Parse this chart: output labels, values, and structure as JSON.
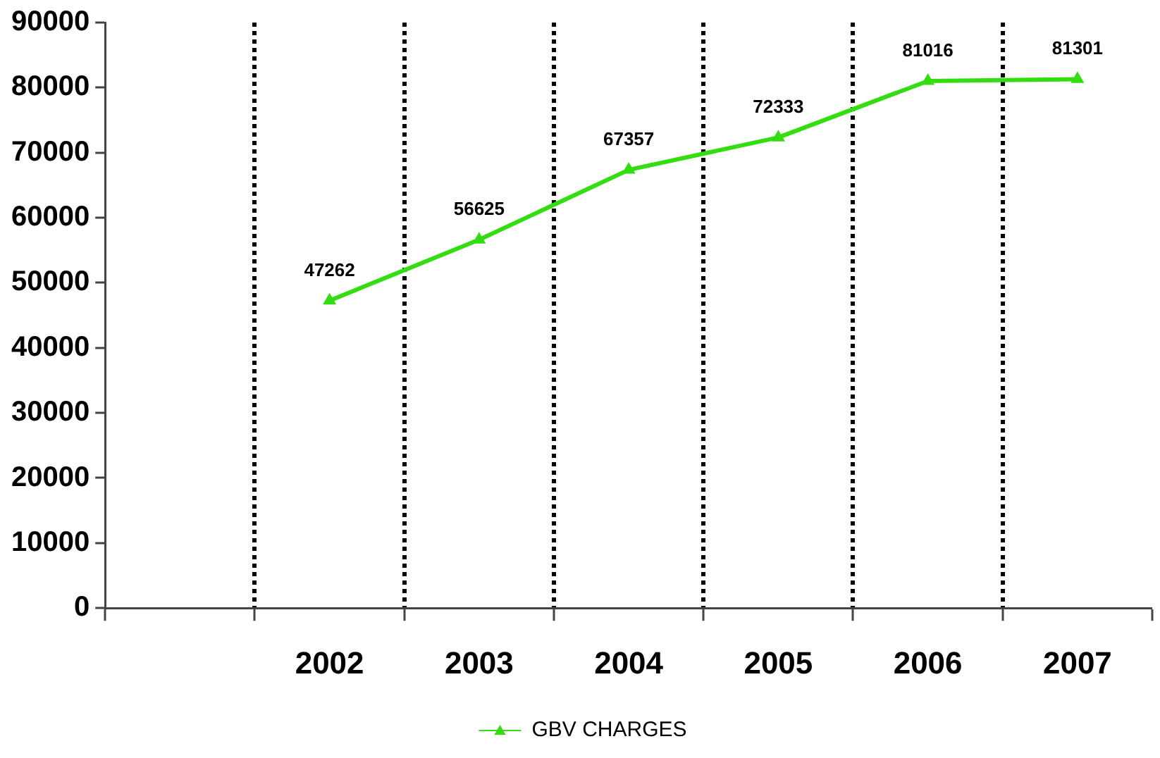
{
  "chart_data": {
    "type": "line",
    "categories": [
      null,
      "2002",
      "2003",
      "2004",
      "2005",
      "2006",
      "2007"
    ],
    "series": [
      {
        "name": "GBV CHARGES",
        "color": "#33dd11",
        "values": [
          null,
          47262,
          56625,
          67357,
          72333,
          81016,
          81301
        ]
      }
    ],
    "ylim": [
      0,
      90000
    ],
    "yticks": [
      0,
      10000,
      20000,
      30000,
      40000,
      50000,
      60000,
      70000,
      80000,
      90000
    ],
    "grid": "x",
    "legend": "bottom",
    "marker": "triangle",
    "data_labels": true
  }
}
